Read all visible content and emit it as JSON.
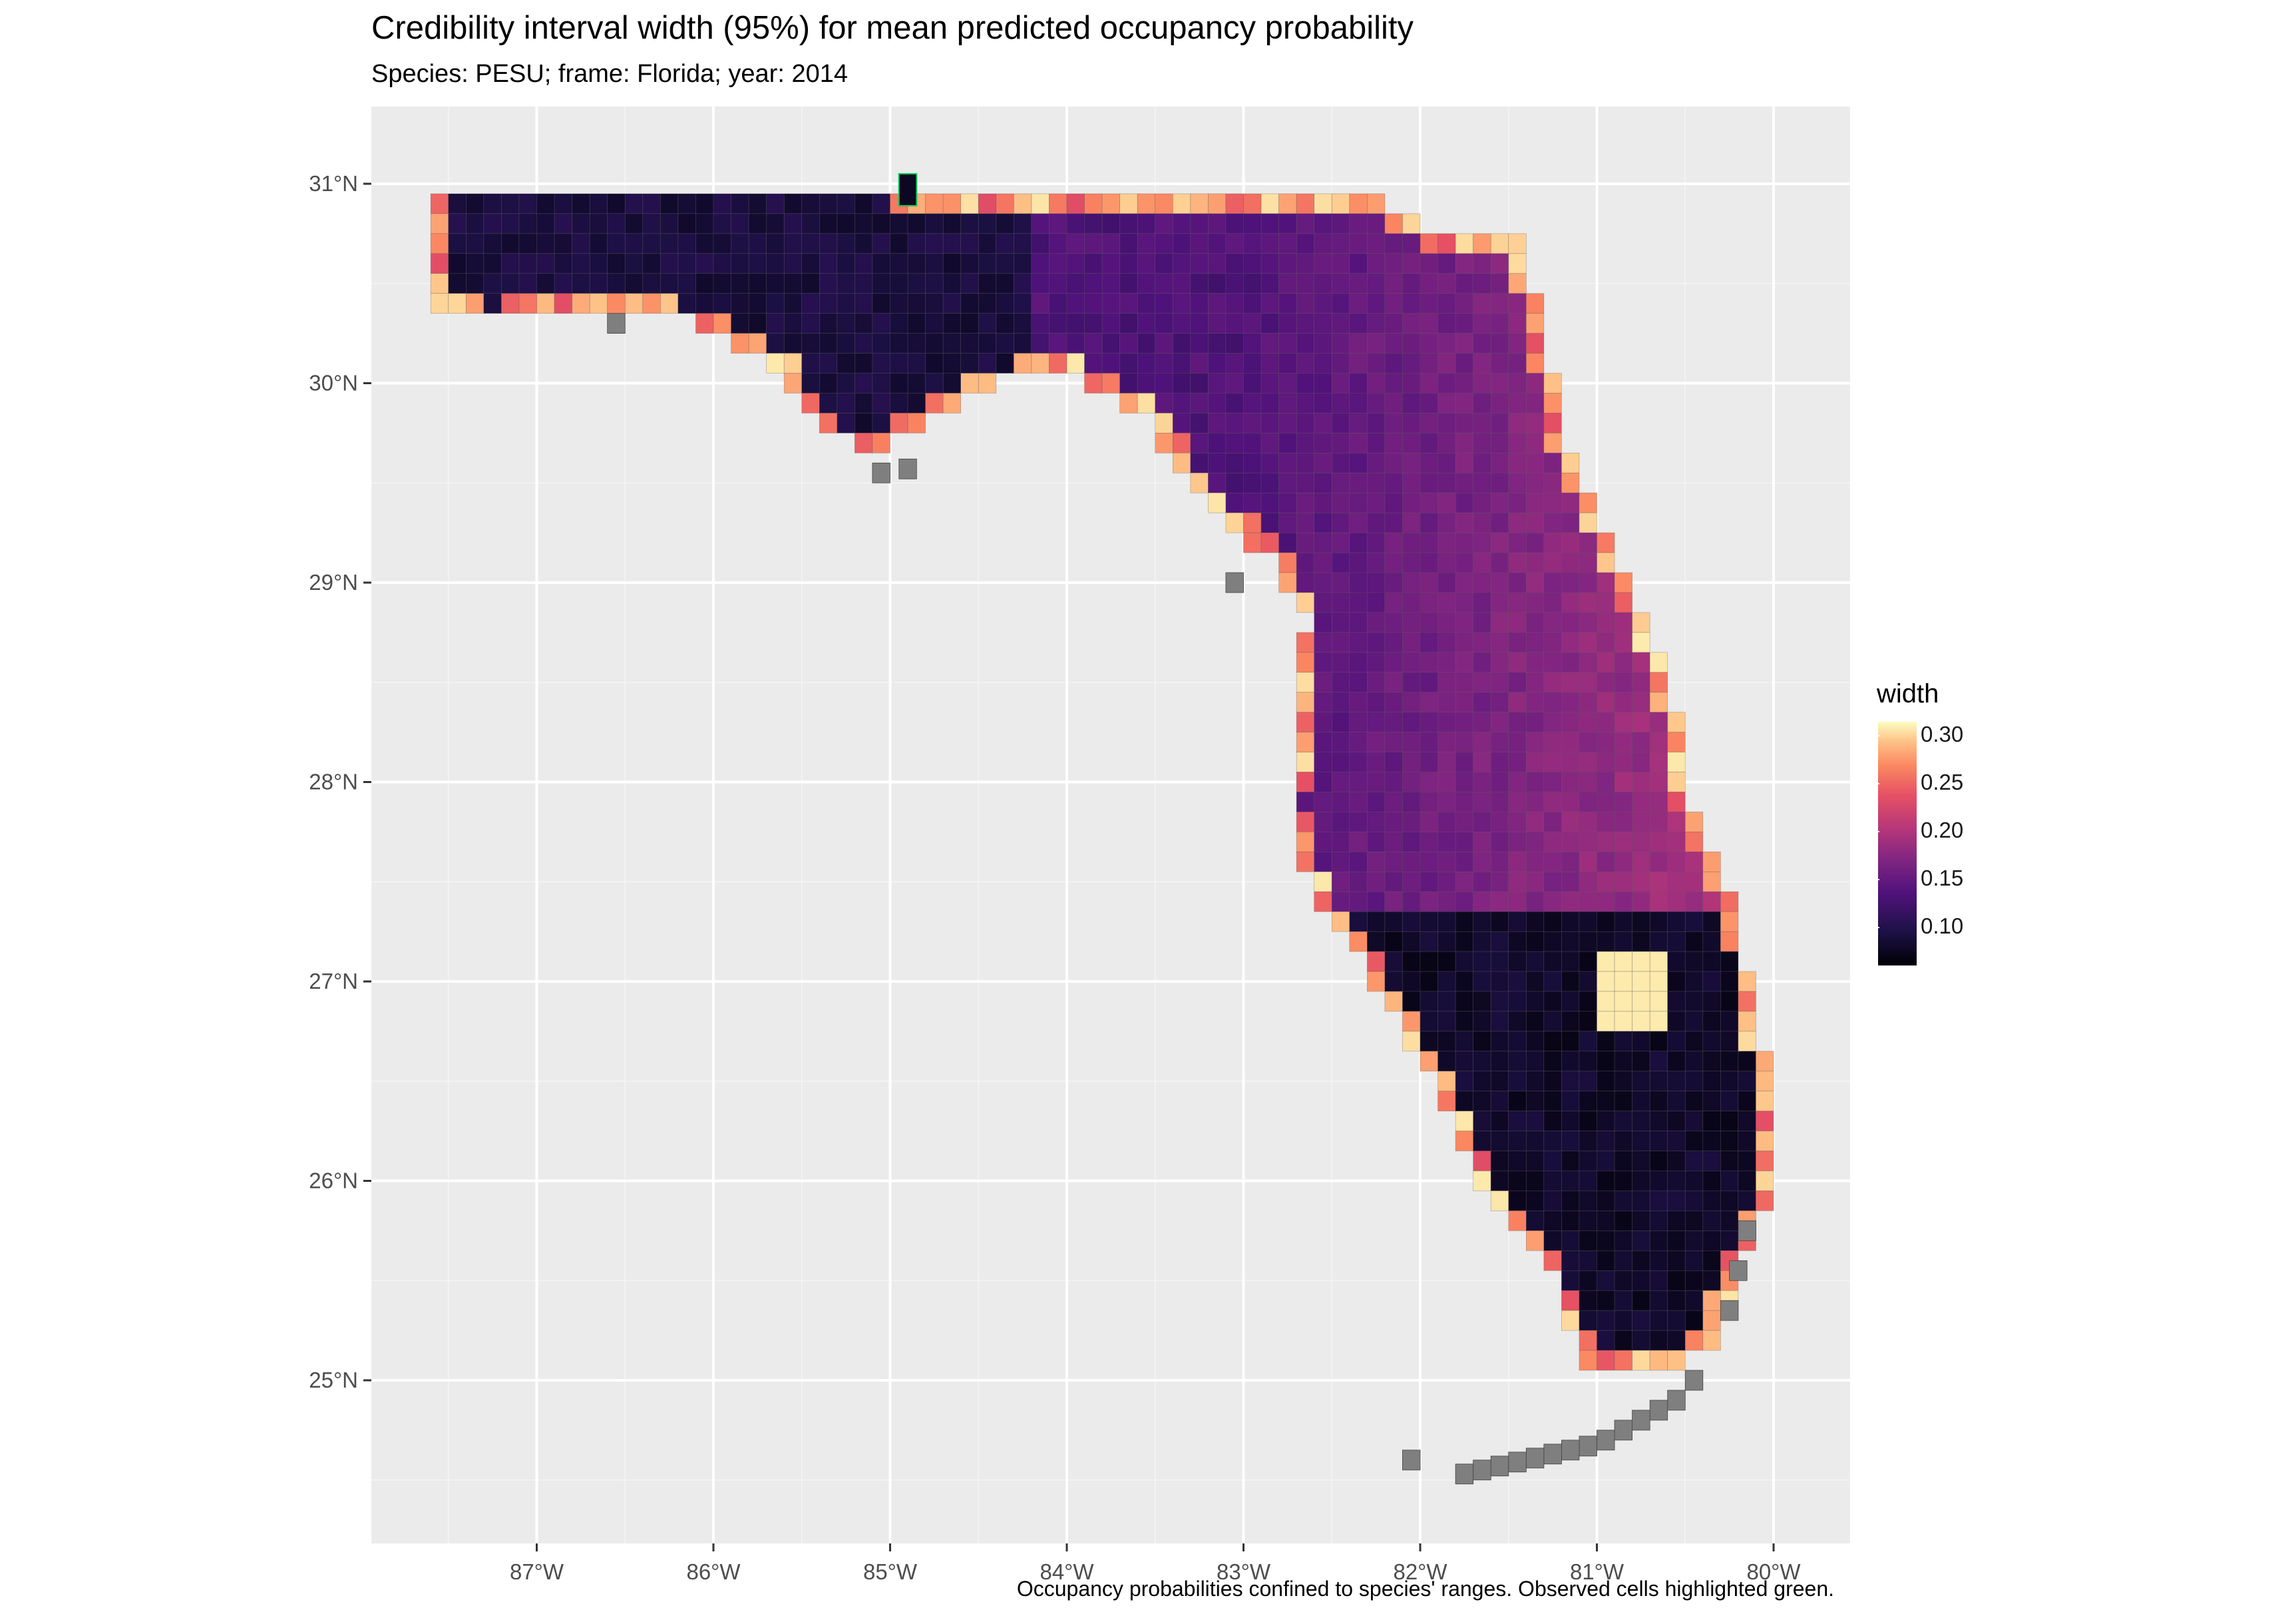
{
  "title": "Credibility interval width (95%) for mean predicted occupancy probability",
  "subtitle": "Species: PESU; frame: Florida; year: 2014",
  "caption": "Occupancy probabilities confined to species' ranges. Observed cells highlighted green.",
  "colors": {
    "panel": "#ebebeb",
    "grid": "#ffffff",
    "outside_range": "#7f7f7f",
    "observed_outline": "#00c853"
  },
  "map": {
    "x_ticks": [
      "87°W",
      "86°W",
      "85°W",
      "84°W",
      "83°W",
      "82°W",
      "81°W",
      "80°W"
    ],
    "y_ticks": [
      "31°N",
      "30°N",
      "29°N",
      "28°N",
      "27°N",
      "26°N",
      "25°N"
    ]
  },
  "legend": {
    "title": "width",
    "palette": "magma",
    "ticks": [
      "0.30",
      "0.25",
      "0.20",
      "0.15",
      "0.10"
    ]
  }
}
